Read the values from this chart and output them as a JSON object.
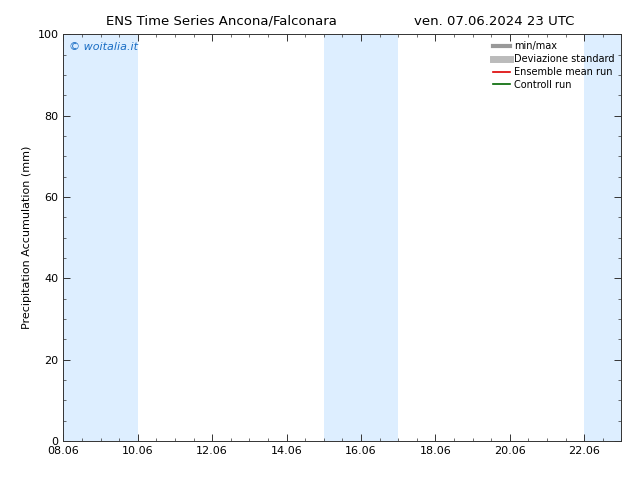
{
  "title_left": "ENS Time Series Ancona/Falconara",
  "title_right": "ven. 07.06.2024 23 UTC",
  "xlabel": "",
  "ylabel": "Precipitation Accumulation (mm)",
  "ylim": [
    0,
    100
  ],
  "xlim_start": 8.06,
  "xlim_end": 23.06,
  "xtick_values": [
    8.06,
    10.06,
    12.06,
    14.06,
    16.06,
    18.06,
    20.06,
    22.06
  ],
  "xtick_labels": [
    "08.06",
    "10.06",
    "12.06",
    "14.06",
    "16.06",
    "18.06",
    "20.06",
    "22.06"
  ],
  "ytick_values": [
    0,
    20,
    40,
    60,
    80,
    100
  ],
  "ytick_labels": [
    "0",
    "20",
    "40",
    "60",
    "80",
    "100"
  ],
  "background_color": "#ffffff",
  "plot_bg_color": "#ffffff",
  "watermark": "© woitalia.it",
  "watermark_color": "#1a6ec4",
  "shaded_bands": [
    {
      "x_start": 8.06,
      "x_end": 10.06
    },
    {
      "x_start": 15.06,
      "x_end": 17.06
    },
    {
      "x_start": 22.06,
      "x_end": 23.06
    }
  ],
  "band_color": "#ddeeff",
  "legend_items": [
    {
      "label": "min/max",
      "color": "#999999",
      "lw": 3,
      "style": "solid"
    },
    {
      "label": "Deviazione standard",
      "color": "#bbbbbb",
      "lw": 5,
      "style": "solid"
    },
    {
      "label": "Ensemble mean run",
      "color": "#dd0000",
      "lw": 1.2,
      "style": "solid"
    },
    {
      "label": "Controll run",
      "color": "#006600",
      "lw": 1.2,
      "style": "solid"
    }
  ],
  "title_fontsize": 9.5,
  "axis_label_fontsize": 8,
  "tick_fontsize": 8,
  "legend_fontsize": 7,
  "watermark_fontsize": 8
}
